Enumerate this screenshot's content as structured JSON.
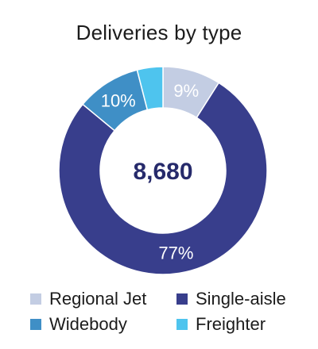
{
  "chart_data": {
    "type": "pie",
    "title": "Deliveries by type",
    "center_label": "8,680",
    "slices": [
      {
        "name": "Regional Jet",
        "value": 9,
        "label": "9%",
        "color": "#c3cde3"
      },
      {
        "name": "Single-aisle",
        "value": 77,
        "label": "77%",
        "color": "#383e8c"
      },
      {
        "name": "Widebody",
        "value": 10,
        "label": "10%",
        "color": "#3f8fc6"
      },
      {
        "name": "Freighter",
        "value": 4,
        "label": "",
        "color": "#4ec4ee"
      }
    ],
    "legend_position": "bottom"
  }
}
